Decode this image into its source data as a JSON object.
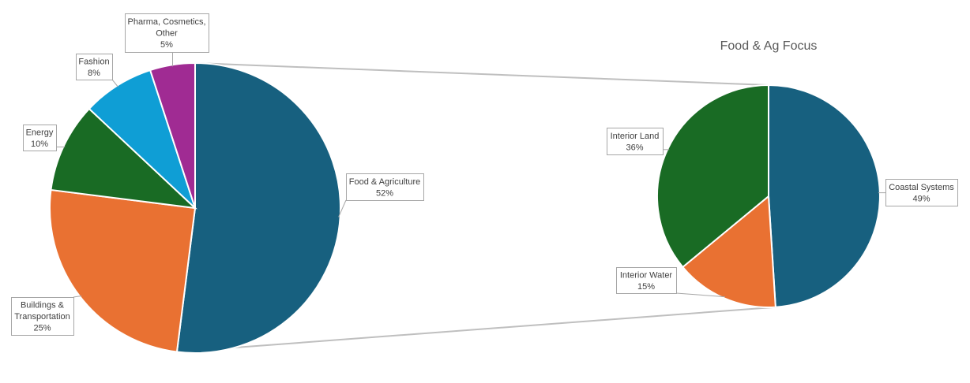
{
  "chart_data": [
    {
      "type": "pie",
      "title": "",
      "categories": [
        "Food & Agriculture",
        "Buildings & Transportation",
        "Energy",
        "Fashion",
        "Pharma, Cosmetics, Other"
      ],
      "values": [
        52,
        25,
        10,
        8,
        5
      ],
      "value_labels": [
        "52%",
        "25%",
        "10%",
        "8%",
        "5%"
      ],
      "label_lines": [
        [
          "Food & Agriculture"
        ],
        [
          "Buildings &",
          "Transportation"
        ],
        [
          "Energy"
        ],
        [
          "Fashion"
        ],
        [
          "Pharma, Cosmetics,",
          "Other"
        ]
      ],
      "colors": [
        "#17607F",
        "#E97132",
        "#196B24",
        "#0F9ED5",
        "#A02B93"
      ],
      "legend": "none"
    },
    {
      "type": "pie",
      "title": "Food & Ag Focus",
      "categories": [
        "Coastal Systems",
        "Interior Water",
        "Interior Land"
      ],
      "values": [
        49,
        15,
        36
      ],
      "value_labels": [
        "49%",
        "15%",
        "36%"
      ],
      "label_lines": [
        [
          "Coastal Systems"
        ],
        [
          "Interior Water"
        ],
        [
          "Interior Land"
        ]
      ],
      "colors": [
        "#17607F",
        "#E97132",
        "#196B24"
      ],
      "legend": "none"
    }
  ]
}
